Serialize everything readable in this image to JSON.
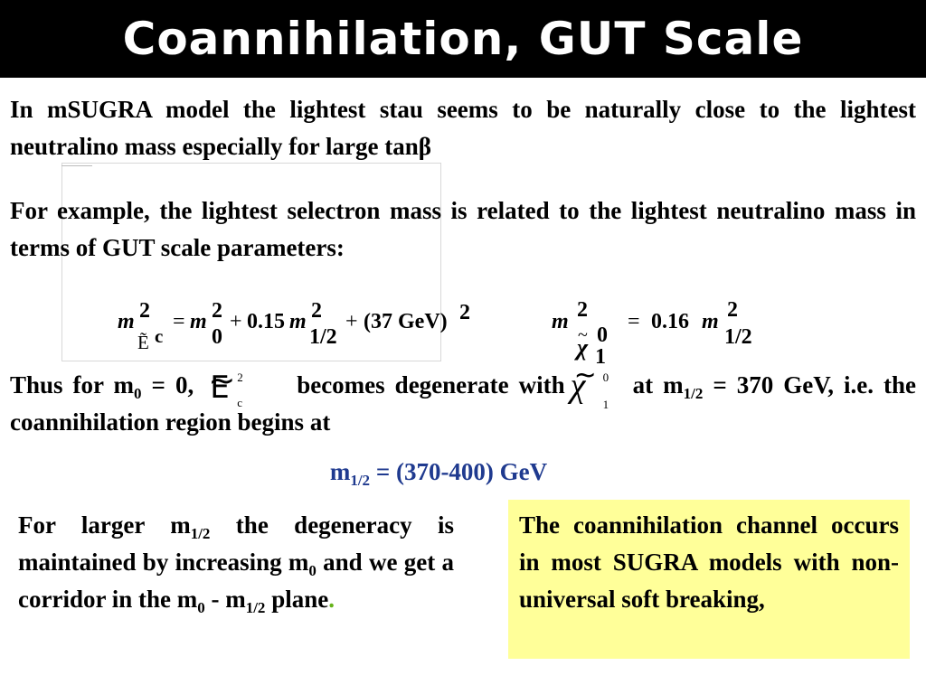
{
  "title": "Coannihilation, GUT Scale",
  "para1": {
    "text": "In mSUGRA model the lightest stau seems to be naturally close to the lightest neutralino mass especially for large tan",
    "beta": "β"
  },
  "para2": {
    "text": "For example, the lightest selectron mass is related to the  lightest neutralino mass in terms of  GUT scale parameters:"
  },
  "formula_selectron": {
    "m": "m",
    "sq": "2",
    "sub_label": "Ẽ",
    "sub_c": "c",
    "eq": "=",
    "m0": "m",
    "sub0": "0",
    "plus1": "+",
    "coef1": "0.15",
    "m_half": "m",
    "sub_half": "1/2",
    "plus2": "+",
    "const": "(37 GeV)",
    "const_sq": "2"
  },
  "formula_neutralino": {
    "m": "m",
    "sq": "2",
    "chi": "χ",
    "tilde": "~",
    "chi_sup": "0",
    "chi_sub": "1",
    "eq": "=",
    "coef": "0.16",
    "m_half": "m",
    "sub_half": "1/2"
  },
  "para3": {
    "part1": "Thus for m",
    "sub1": "0",
    "part2": " = 0,",
    "selectron_symbol": "E",
    "selectron_sup": "2",
    "selectron_sub": "c",
    "part3": "becomes degenerate with",
    "chi_symbol": "χ",
    "chi_sup": "0",
    "chi_sub": "1",
    "part4": " at m",
    "sub2": "1/2",
    "part5": " = 370 GeV, i.e. the coannihilation region begins at"
  },
  "range_line": {
    "prefix": "m",
    "sub": "1/2",
    "value": " = (370-400) GeV",
    "color": "#1f3a8f"
  },
  "left_block": {
    "a": "For larger m",
    "a_sub": "1/2",
    "b": " the degeneracy is maintained by increasing m",
    "b_sub": "0",
    "c": " and we get a corridor in the m",
    "c_sub": "0",
    "d": " - m",
    "d_sub": "1/2",
    "e": " plane",
    "dot": ".",
    "dot_color": "#66b21a"
  },
  "yellow_box": {
    "text": "The coannihilation channel occurs in most SUGRA models with non-universal soft breaking,",
    "background": "#ffff99"
  }
}
